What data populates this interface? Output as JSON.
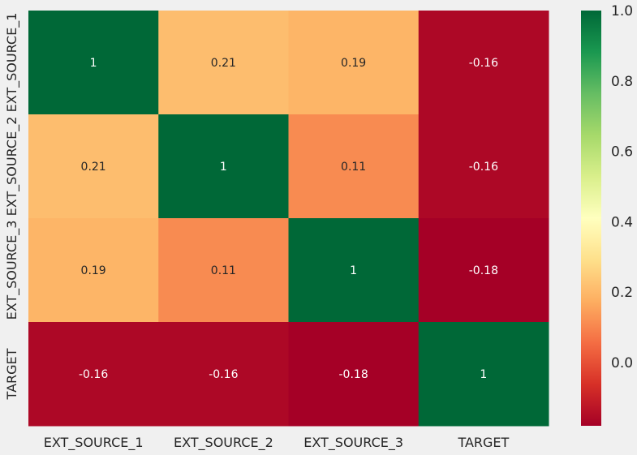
{
  "chart_data": {
    "type": "heatmap",
    "title": "",
    "xlabel": "",
    "ylabel": "",
    "x": [
      "EXT_SOURCE_1",
      "EXT_SOURCE_2",
      "EXT_SOURCE_3",
      "TARGET"
    ],
    "y": [
      "EXT_SOURCE_1",
      "EXT_SOURCE_2",
      "EXT_SOURCE_3",
      "TARGET"
    ],
    "values": [
      [
        1,
        0.21,
        0.19,
        -0.16
      ],
      [
        0.21,
        1,
        0.11,
        -0.16
      ],
      [
        0.19,
        0.11,
        1,
        -0.18
      ],
      [
        -0.16,
        -0.16,
        -0.18,
        1
      ]
    ],
    "cell_labels": [
      [
        "1",
        "0.21",
        "0.19",
        "-0.16"
      ],
      [
        "0.21",
        "1",
        "0.11",
        "-0.16"
      ],
      [
        "0.19",
        "0.11",
        "1",
        "-0.18"
      ],
      [
        "-0.16",
        "-0.16",
        "-0.18",
        "1"
      ]
    ],
    "colormap": "RdYlGn",
    "colorbar": {
      "range": [
        -0.18,
        1.0
      ],
      "ticks": [
        0.0,
        0.2,
        0.4,
        0.6,
        0.8,
        1.0
      ],
      "tick_labels": [
        "0.0",
        "0.2",
        "0.4",
        "0.6",
        "0.8",
        "1.0"
      ]
    },
    "colors": {
      "background": "#f0f0f0",
      "annotation_dark": "#262626",
      "annotation_light": "#ffffff"
    }
  }
}
